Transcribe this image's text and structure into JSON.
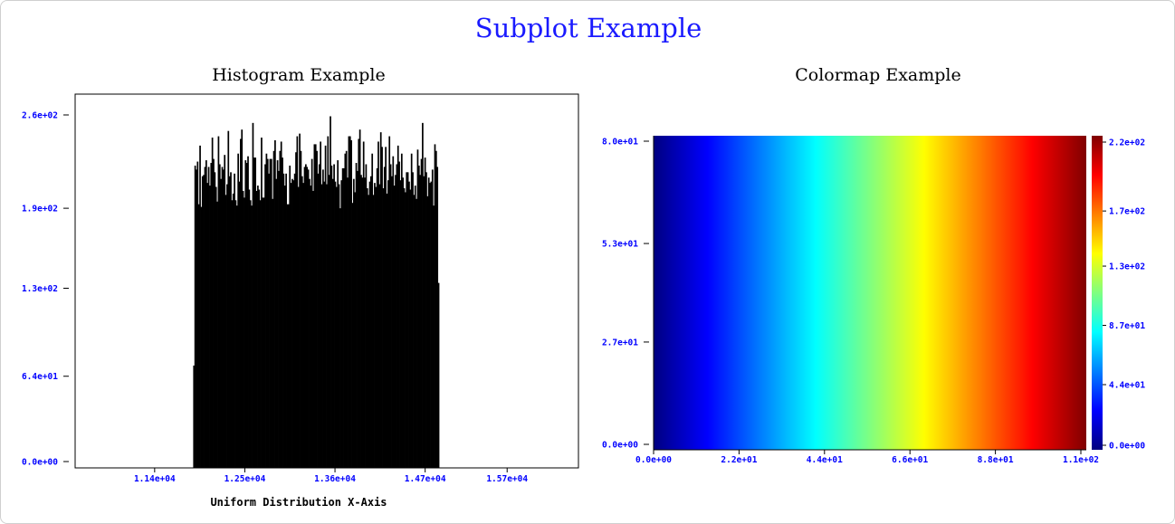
{
  "figure": {
    "title": "Subplot Example",
    "title_color": "#1a1aff"
  },
  "chart_data": [
    {
      "type": "bar",
      "title": "Histogram Example",
      "xlabel": "Uniform Distribution X-Axis",
      "ylabel": "",
      "bar_color": "#000000",
      "tick_label_color": "#0000ff",
      "xlim": [
        10430,
        16570
      ],
      "ylim": [
        0,
        260
      ],
      "xticks": [
        11400,
        12500,
        13600,
        14700,
        15700
      ],
      "xtick_labels": [
        "1.14e+04",
        "1.25e+04",
        "1.36e+04",
        "1.47e+04",
        "1.57e+04"
      ],
      "yticks": [
        0,
        64,
        130,
        190,
        260
      ],
      "ytick_labels": [
        "0.0e+00",
        "6.4e+01",
        "1.3e+02",
        "1.9e+02",
        "2.6e+02"
      ],
      "bin_start": 11870,
      "bin_end": 14870,
      "bin_count": 200,
      "bin_width": 15,
      "bin_heights": [
        72,
        222,
        219,
        225,
        193,
        237,
        191,
        214,
        215,
        221,
        226,
        209,
        221,
        207,
        224,
        243,
        227,
        217,
        206,
        195,
        244,
        223,
        212,
        221,
        219,
        230,
        200,
        208,
        248,
        214,
        217,
        196,
        201,
        216,
        196,
        192,
        231,
        210,
        242,
        249,
        203,
        198,
        226,
        224,
        229,
        204,
        196,
        192,
        254,
        228,
        228,
        203,
        207,
        204,
        196,
        243,
        198,
        198,
        223,
        231,
        227,
        216,
        227,
        227,
        197,
        233,
        241,
        212,
        226,
        218,
        233,
        240,
        228,
        216,
        207,
        216,
        193,
        193,
        222,
        209,
        212,
        211,
        216,
        232,
        244,
        206,
        246,
        233,
        214,
        209,
        221,
        223,
        221,
        219,
        212,
        207,
        227,
        203,
        238,
        238,
        233,
        216,
        223,
        240,
        208,
        219,
        210,
        237,
        208,
        244,
        215,
        259,
        222,
        212,
        223,
        210,
        206,
        226,
        208,
        190,
        211,
        220,
        220,
        231,
        233,
        213,
        244,
        244,
        241,
        194,
        212,
        202,
        224,
        218,
        242,
        249,
        215,
        213,
        240,
        213,
        223,
        205,
        200,
        210,
        214,
        231,
        200,
        209,
        206,
        220,
        240,
        208,
        247,
        236,
        205,
        221,
        236,
        201,
        211,
        244,
        223,
        214,
        229,
        207,
        215,
        223,
        237,
        225,
        211,
        231,
        213,
        205,
        202,
        217,
        217,
        210,
        204,
        231,
        217,
        200,
        207,
        197,
        234,
        222,
        215,
        227,
        254,
        214,
        228,
        217,
        199,
        213,
        209,
        210,
        219,
        192,
        238,
        233,
        221,
        134
      ],
      "grid": false,
      "legend": "none"
    },
    {
      "type": "heatmap",
      "title": "Colormap Example",
      "colormap": "jet",
      "tick_label_color": "#0000ff",
      "xlim": [
        0,
        110
      ],
      "ylim": [
        0,
        80
      ],
      "xticks": [
        0,
        22,
        44,
        66,
        88,
        110
      ],
      "xtick_labels": [
        "0.0e+00",
        "2.2e+01",
        "4.4e+01",
        "6.6e+01",
        "8.8e+01",
        "1.1e+02"
      ],
      "yticks": [
        0,
        27,
        53,
        80
      ],
      "ytick_labels": [
        "0.0e+00",
        "2.7e+01",
        "5.3e+01",
        "8.0e+01"
      ],
      "value_function": "x * 2 (constant along y)",
      "value_range": [
        0,
        220
      ],
      "colorbar": {
        "ticks": [
          0,
          44,
          87,
          130,
          170,
          220
        ],
        "tick_labels": [
          "0.0e+00",
          "4.4e+01",
          "8.7e+01",
          "1.3e+02",
          "1.7e+02",
          "2.2e+02"
        ]
      },
      "grid": false,
      "legend": "none"
    }
  ]
}
